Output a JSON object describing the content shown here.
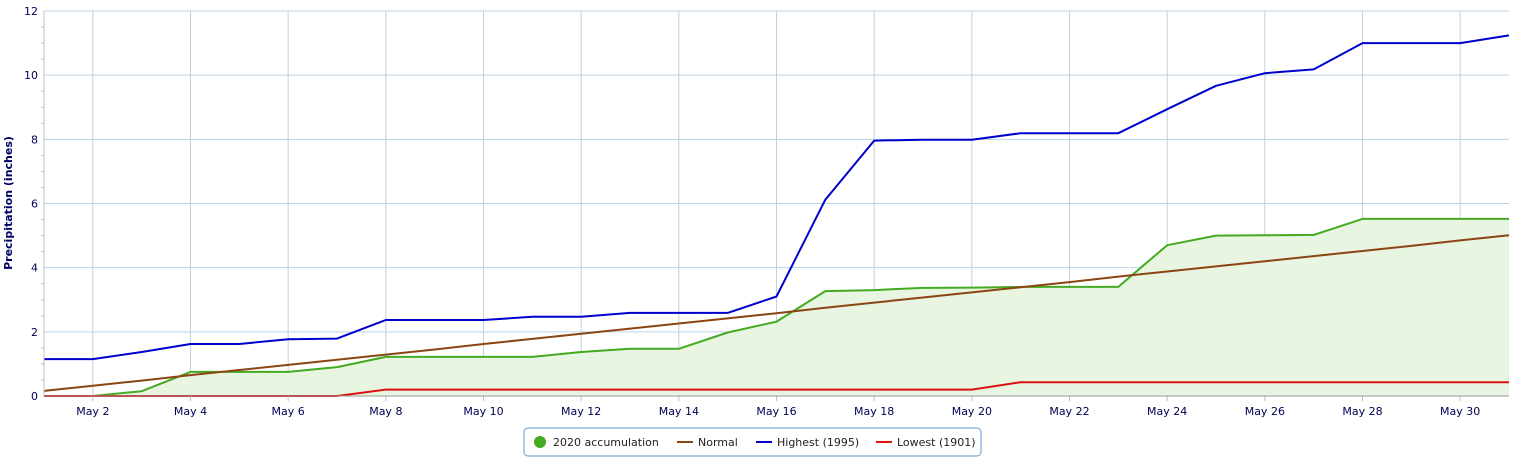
{
  "chart_data": {
    "type": "line",
    "ylabel": "Precipitation (inches)",
    "xlabel": "",
    "ylim": [
      0,
      12
    ],
    "yticks": [
      0,
      2,
      4,
      6,
      8,
      10,
      12
    ],
    "x_days": [
      1,
      2,
      3,
      4,
      5,
      6,
      7,
      8,
      9,
      10,
      11,
      12,
      13,
      14,
      15,
      16,
      17,
      18,
      19,
      20,
      21,
      22,
      23,
      24,
      25,
      26,
      27,
      28,
      29,
      30,
      31
    ],
    "xtick_days": [
      2,
      4,
      6,
      8,
      10,
      12,
      14,
      16,
      18,
      20,
      22,
      24,
      26,
      28,
      30
    ],
    "xtick_labels": [
      "May 2",
      "May 4",
      "May 6",
      "May 8",
      "May 10",
      "May 12",
      "May 14",
      "May 16",
      "May 18",
      "May 20",
      "May 22",
      "May 24",
      "May 26",
      "May 28",
      "May 30"
    ],
    "grid": true,
    "legend_position": "bottom-center",
    "series": [
      {
        "name": "2020 accumulation",
        "kind": "area",
        "color": "#44aa22",
        "fill": "#e8f5e0",
        "values": [
          0.0,
          0.0,
          0.15,
          0.75,
          0.75,
          0.75,
          0.9,
          1.22,
          1.22,
          1.22,
          1.22,
          1.37,
          1.47,
          1.47,
          1.98,
          2.32,
          3.27,
          3.3,
          3.37,
          3.38,
          3.4,
          3.4,
          3.4,
          4.7,
          5.0,
          5.01,
          5.02,
          5.52,
          5.52,
          5.52,
          5.52
        ]
      },
      {
        "name": "Normal",
        "kind": "line",
        "color": "#8b4513",
        "values": [
          0.16,
          0.32,
          0.48,
          0.65,
          0.81,
          0.97,
          1.13,
          1.29,
          1.45,
          1.62,
          1.78,
          1.94,
          2.1,
          2.26,
          2.42,
          2.58,
          2.75,
          2.91,
          3.07,
          3.23,
          3.39,
          3.55,
          3.72,
          3.88,
          4.04,
          4.2,
          4.36,
          4.52,
          4.68,
          4.85,
          5.01
        ]
      },
      {
        "name": "Highest (1995)",
        "kind": "line",
        "color": "#0000cc",
        "values": [
          1.15,
          1.15,
          1.37,
          1.62,
          1.62,
          1.77,
          1.79,
          2.37,
          2.37,
          2.37,
          2.47,
          2.47,
          2.59,
          2.59,
          2.59,
          3.1,
          6.12,
          7.96,
          7.99,
          7.99,
          8.19,
          8.19,
          8.19,
          8.94,
          9.67,
          10.06,
          10.18,
          11.0,
          11.0,
          11.0,
          11.24
        ]
      },
      {
        "name": "Lowest (1901)",
        "kind": "line",
        "color": "#dd1111",
        "values": [
          0.0,
          0.0,
          0.0,
          0.0,
          0.0,
          0.0,
          0.0,
          0.2,
          0.2,
          0.2,
          0.2,
          0.2,
          0.2,
          0.2,
          0.2,
          0.2,
          0.2,
          0.2,
          0.2,
          0.2,
          0.43,
          0.43,
          0.43,
          0.43,
          0.43,
          0.43,
          0.43,
          0.43,
          0.43,
          0.43,
          0.43
        ]
      }
    ]
  },
  "legend": {
    "items": [
      {
        "label": "2020 accumulation",
        "color": "#44aa22",
        "symbol": "circle"
      },
      {
        "label": "Normal",
        "color": "#8b4513",
        "symbol": "line"
      },
      {
        "label": "Highest (1995)",
        "color": "#0000cc",
        "symbol": "line"
      },
      {
        "label": "Lowest (1901)",
        "color": "#dd1111",
        "symbol": "line"
      }
    ]
  }
}
